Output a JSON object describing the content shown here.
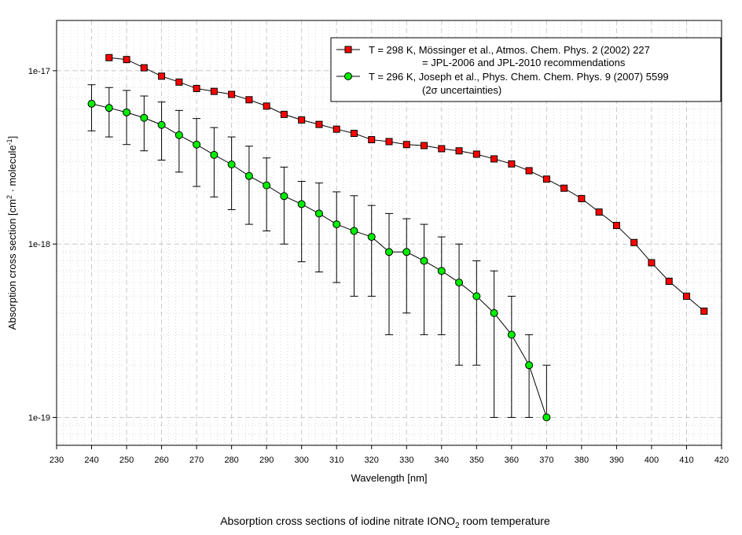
{
  "chart_data": {
    "type": "scatter",
    "title": "Absorption cross sections of iodine nitrate IONO",
    "title_sub": "2",
    "title_tail": " room temperature",
    "xlabel": "Wavelength [nm]",
    "ylabel_parts": [
      "Absorption cross section [cm",
      "2",
      " · molecule",
      "-1",
      "]"
    ],
    "xlim": [
      230,
      420
    ],
    "ylim": [
      6.9e-20,
      1.95e-17
    ],
    "yscale": "log",
    "x_ticks": [
      230,
      240,
      250,
      260,
      270,
      280,
      290,
      300,
      310,
      320,
      330,
      340,
      350,
      360,
      370,
      380,
      390,
      400,
      410,
      420
    ],
    "y_ticks": [
      {
        "value": 1e-17,
        "label": "1e-17"
      },
      {
        "value": 1e-18,
        "label": "1e-18"
      },
      {
        "value": 1e-19,
        "label": "1e-19"
      }
    ],
    "grid": true,
    "legend_position": "top-right",
    "series": [
      {
        "name": "T = 298 K, Mössinger et al., Atmos. Chem. Phys. 2 (2002) 227",
        "name_line2": "= JPL-2006 and JPL-2010 recommendations",
        "marker": "square",
        "color": "#ff0000",
        "x": [
          245,
          250,
          255,
          260,
          265,
          270,
          275,
          280,
          285,
          290,
          295,
          300,
          305,
          310,
          315,
          320,
          325,
          330,
          335,
          340,
          345,
          350,
          355,
          360,
          365,
          370,
          375,
          380,
          385,
          390,
          395,
          400,
          405,
          410,
          415
        ],
        "y": [
          1.19e-17,
          1.16e-17,
          1.04e-17,
          9.3e-18,
          8.6e-18,
          7.9e-18,
          7.6e-18,
          7.3e-18,
          6.8e-18,
          6.25e-18,
          5.6e-18,
          5.2e-18,
          4.9e-18,
          4.6e-18,
          4.35e-18,
          4e-18,
          3.9e-18,
          3.75e-18,
          3.7e-18,
          3.55e-18,
          3.45e-18,
          3.3e-18,
          3.1e-18,
          2.9e-18,
          2.65e-18,
          2.37e-18,
          2.1e-18,
          1.83e-18,
          1.53e-18,
          1.28e-18,
          1.02e-18,
          7.8e-19,
          6.1e-19,
          5e-19,
          4.1e-19
        ]
      },
      {
        "name": "T = 296 K, Joseph et al., Phys. Chem. Chem. Phys. 9 (2007) 5599",
        "name_line2": "(2σ uncertainties)",
        "marker": "circle",
        "color": "#00ee00",
        "x": [
          240,
          245,
          250,
          255,
          260,
          265,
          270,
          275,
          280,
          285,
          290,
          295,
          300,
          305,
          310,
          315,
          320,
          325,
          330,
          335,
          340,
          345,
          350,
          355,
          360,
          365,
          370
        ],
        "y": [
          6.45e-18,
          6.1e-18,
          5.75e-18,
          5.35e-18,
          4.87e-18,
          4.25e-18,
          3.75e-18,
          3.27e-18,
          2.88e-18,
          2.47e-18,
          2.18e-18,
          1.89e-18,
          1.7e-18,
          1.5e-18,
          1.3e-18,
          1.19e-18,
          1.1e-18,
          9e-19,
          9e-19,
          8e-19,
          7e-19,
          6e-19,
          5e-19,
          4e-19,
          3e-19,
          2e-19,
          1e-19
        ],
        "y_upper": [
          8.3e-18,
          8e-18,
          7.7e-18,
          7.15e-18,
          6.6e-18,
          5.9e-18,
          5.3e-18,
          4.7e-18,
          4.15e-18,
          3.67e-18,
          3.14e-18,
          2.78e-18,
          2.3e-18,
          2.25e-18,
          2e-18,
          1.9e-18,
          1.67e-18,
          1.5e-18,
          1.4e-18,
          1.3e-18,
          1.1e-18,
          1e-18,
          8e-19,
          7e-19,
          5e-19,
          3e-19,
          2e-19
        ],
        "y_lower": [
          4.5e-18,
          4.15e-18,
          3.75e-18,
          3.45e-18,
          3.05e-18,
          2.6e-18,
          2.15e-18,
          1.87e-18,
          1.58e-18,
          1.3e-18,
          1.19e-18,
          1e-18,
          7.9e-19,
          6.9e-19,
          6e-19,
          5e-19,
          5e-19,
          3e-19,
          4e-19,
          3e-19,
          3e-19,
          2e-19,
          2e-19,
          1e-19,
          1e-19,
          1e-19,
          1e-19
        ]
      }
    ]
  }
}
